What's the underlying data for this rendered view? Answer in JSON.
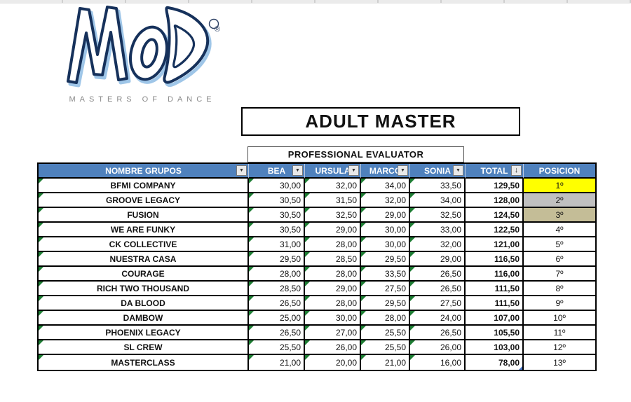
{
  "logo": {
    "brand": "MOD",
    "registered_mark": "®",
    "subtitle": "MASTERS OF DANCE"
  },
  "title_box": {
    "text": "ADULT MASTER"
  },
  "evaluator_box": {
    "text": "PROFESSIONAL EVALUATOR"
  },
  "table": {
    "group_header": "NOMBRE GRUPOS",
    "judge_headers": [
      "BEA",
      "URSULA",
      "MARCO",
      "SONIA"
    ],
    "total_header": "TOTAL",
    "position_header": "POSICION",
    "rows": [
      {
        "name": "BFMI COMPANY",
        "scores": [
          "30,00",
          "32,00",
          "34,00",
          "33,50"
        ],
        "total": "129,50",
        "position": "1º",
        "position_bg": "#FFFF00"
      },
      {
        "name": "GROOVE LEGACY",
        "scores": [
          "30,50",
          "31,50",
          "32,00",
          "34,00"
        ],
        "total": "128,00",
        "position": "2º",
        "position_bg": "#C0C0C0"
      },
      {
        "name": "FUSION",
        "scores": [
          "30,50",
          "32,50",
          "29,00",
          "32,50"
        ],
        "total": "124,50",
        "position": "3º",
        "position_bg": "#C4BD97"
      },
      {
        "name": "WE ARE FUNKY",
        "scores": [
          "30,50",
          "29,00",
          "30,00",
          "33,00"
        ],
        "total": "122,50",
        "position": "4º",
        "position_bg": ""
      },
      {
        "name": "CK COLLECTIVE",
        "scores": [
          "31,00",
          "28,00",
          "30,00",
          "32,00"
        ],
        "total": "121,00",
        "position": "5º",
        "position_bg": ""
      },
      {
        "name": "NUESTRA CASA",
        "scores": [
          "29,50",
          "28,50",
          "29,50",
          "29,00"
        ],
        "total": "116,50",
        "position": "6º",
        "position_bg": ""
      },
      {
        "name": "COURAGE",
        "scores": [
          "28,00",
          "28,00",
          "33,50",
          "26,50"
        ],
        "total": "116,00",
        "position": "7º",
        "position_bg": ""
      },
      {
        "name": "RICH TWO THOUSAND",
        "scores": [
          "28,50",
          "29,00",
          "27,50",
          "26,50"
        ],
        "total": "111,50",
        "position": "8º",
        "position_bg": ""
      },
      {
        "name": "DA BLOOD",
        "scores": [
          "26,50",
          "28,00",
          "29,50",
          "27,50"
        ],
        "total": "111,50",
        "position": "9º",
        "position_bg": ""
      },
      {
        "name": "DAMBOW",
        "scores": [
          "25,00",
          "30,00",
          "28,00",
          "24,00"
        ],
        "total": "107,00",
        "position": "10º",
        "position_bg": ""
      },
      {
        "name": "PHOENIX LEGACY",
        "scores": [
          "26,50",
          "27,00",
          "25,50",
          "26,50"
        ],
        "total": "105,50",
        "position": "11º",
        "position_bg": ""
      },
      {
        "name": "SL CREW",
        "scores": [
          "25,50",
          "26,00",
          "25,50",
          "26,00"
        ],
        "total": "103,00",
        "position": "12º",
        "position_bg": ""
      },
      {
        "name": "MASTERCLASS",
        "scores": [
          "21,00",
          "20,00",
          "21,00",
          "16,00"
        ],
        "total": "78,00",
        "position": "13º",
        "position_bg": ""
      }
    ]
  },
  "icons": {
    "filter_dropdown": "▼",
    "sort_descending": "↓"
  },
  "colors": {
    "header_blue": "#4F81BD",
    "position_first": "#FFFF00",
    "position_second": "#C0C0C0",
    "position_third": "#C4BD97",
    "flag_green": "#1E7E34",
    "logo_navy": "#16315B",
    "logo_light_blue": "#9FC6E8"
  }
}
